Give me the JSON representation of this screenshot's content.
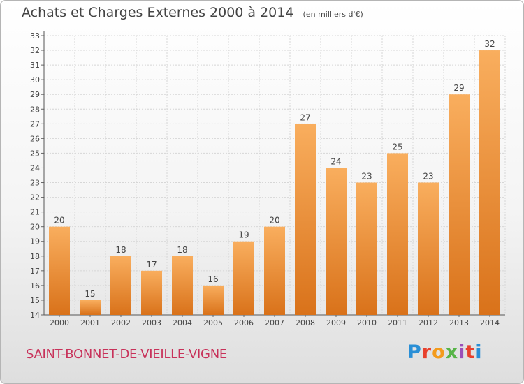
{
  "title": "Achats et Charges Externes 2000 à 2014",
  "unit": "(en milliers d'€)",
  "commune": "SAINT-BONNET-DE-VIEILLE-VIGNE",
  "logo": {
    "text": "Proxiti",
    "colors": [
      "#2a8fd6",
      "#e8402c",
      "#f39b1c",
      "#57b447",
      "#9b4fb8",
      "#e8402c",
      "#2a8fd6"
    ]
  },
  "colors": {
    "bar": "#f08a24",
    "bar_light": "#f7a85a",
    "title": "#444444",
    "commune": "#c8325a"
  },
  "chart_data": {
    "type": "bar",
    "categories": [
      "2000",
      "2001",
      "2002",
      "2003",
      "2004",
      "2005",
      "2006",
      "2007",
      "2008",
      "2009",
      "2010",
      "2011",
      "2012",
      "2013",
      "2014"
    ],
    "values": [
      20,
      15,
      18,
      17,
      18,
      16,
      19,
      20,
      27,
      24,
      23,
      25,
      23,
      29,
      32
    ],
    "ylim": [
      14,
      33
    ],
    "yticks": [
      14,
      15,
      16,
      17,
      18,
      19,
      20,
      21,
      22,
      23,
      24,
      25,
      26,
      27,
      28,
      29,
      30,
      31,
      32,
      33
    ],
    "grid": true,
    "data_labels": true
  }
}
